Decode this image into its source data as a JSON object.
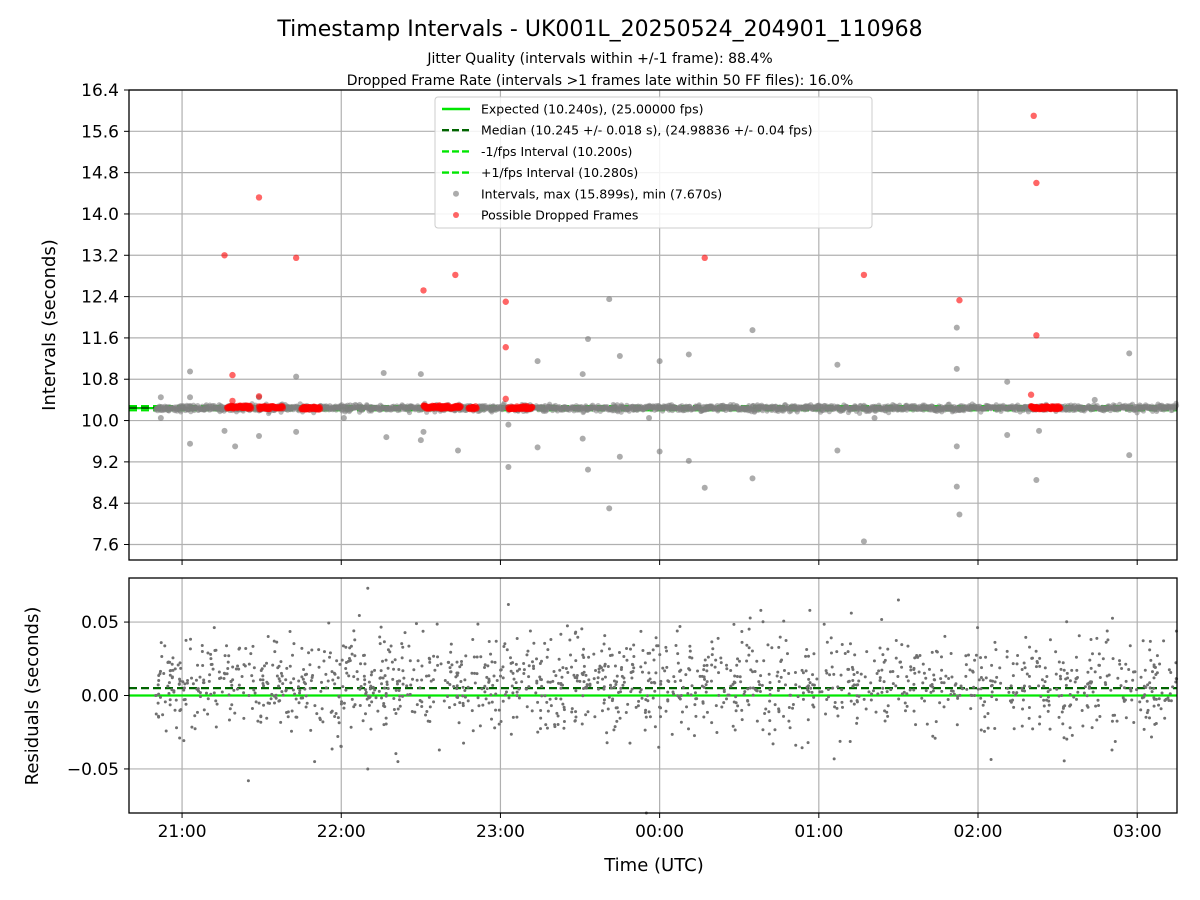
{
  "figure": {
    "title": "Timestamp Intervals - UK001L_20250524_204901_110968",
    "subtitle_1": "Jitter Quality (intervals within +/-1 frame): 88.4%",
    "subtitle_2": "Dropped Frame Rate (intervals >1 frames late within 50 FF files): 16.0%"
  },
  "chart_data": [
    {
      "type": "scatter",
      "panel": "top",
      "xlabel": "",
      "ylabel": "Intervals (seconds)",
      "x_axis_kind": "time (UTC)",
      "xlim": [
        "20:40",
        "03:15"
      ],
      "ylim": [
        7.3,
        16.4
      ],
      "y_ticks": [
        "7.6",
        "8.4",
        "9.2",
        "10.0",
        "10.8",
        "11.6",
        "12.4",
        "13.2",
        "14.0",
        "14.8",
        "15.6",
        "16.4"
      ],
      "x_ticks": [
        "21:00",
        "22:00",
        "23:00",
        "00:00",
        "01:00",
        "02:00",
        "03:00"
      ],
      "grid": true,
      "legend_position": "top-center",
      "legend": [
        {
          "label": "Expected (10.240s), (25.00000 fps)",
          "style": "solid",
          "color": "#00e600"
        },
        {
          "label": "Median (10.245 +/- 0.018 s), (24.98836 +/- 0.04 fps)",
          "style": "dashed",
          "color": "#006400"
        },
        {
          "label": "-1/fps Interval (10.200s)",
          "style": "dashed",
          "color": "#00e600"
        },
        {
          "label": "+1/fps Interval (10.280s)",
          "style": "dashed",
          "color": "#00e600"
        },
        {
          "label": "Intervals, max (15.899s), min (7.670s)",
          "style": "marker",
          "color": "#808080"
        },
        {
          "label": "Possible Dropped Frames",
          "style": "marker",
          "color": "#ff0000"
        }
      ],
      "reference_lines": {
        "expected": 10.24,
        "median": 10.245,
        "minus_one_frame": 10.2,
        "plus_one_frame": 10.28
      },
      "dense_band": {
        "from": "20:50",
        "to": "03:15",
        "center": 10.24,
        "spread": 0.05,
        "approx_count": 2100
      },
      "dropped_clusters": [
        {
          "from": "21:17",
          "to": "21:26",
          "y": 10.26
        },
        {
          "from": "21:29",
          "to": "21:38",
          "y": 10.25
        },
        {
          "from": "21:45",
          "to": "21:52",
          "y": 10.24
        },
        {
          "from": "22:31",
          "to": "22:45",
          "y": 10.26
        },
        {
          "from": "22:48",
          "to": "22:51",
          "y": 10.25
        },
        {
          "from": "23:03",
          "to": "23:12",
          "y": 10.25
        },
        {
          "from": "02:20",
          "to": "02:31",
          "y": 10.25
        }
      ],
      "outliers": [
        {
          "x": "20:52",
          "y": 10.45
        },
        {
          "x": "20:52",
          "y": 10.05
        },
        {
          "x": "21:03",
          "y": 10.95
        },
        {
          "x": "21:03",
          "y": 10.45
        },
        {
          "x": "21:03",
          "y": 9.55
        },
        {
          "x": "21:16",
          "y": 9.8
        },
        {
          "x": "21:20",
          "y": 9.5
        },
        {
          "x": "21:29",
          "y": 9.7
        },
        {
          "x": "21:29",
          "y": 10.45
        },
        {
          "x": "21:43",
          "y": 10.85
        },
        {
          "x": "21:43",
          "y": 9.78
        },
        {
          "x": "22:16",
          "y": 10.92
        },
        {
          "x": "22:17",
          "y": 9.68
        },
        {
          "x": "22:30",
          "y": 10.9
        },
        {
          "x": "22:30",
          "y": 9.62
        },
        {
          "x": "22:31",
          "y": 9.78
        },
        {
          "x": "22:44",
          "y": 9.42
        },
        {
          "x": "23:03",
          "y": 9.92
        },
        {
          "x": "23:03",
          "y": 9.1
        },
        {
          "x": "23:14",
          "y": 11.15
        },
        {
          "x": "23:14",
          "y": 9.48
        },
        {
          "x": "23:31",
          "y": 10.9
        },
        {
          "x": "23:31",
          "y": 9.65
        },
        {
          "x": "23:33",
          "y": 11.58
        },
        {
          "x": "23:33",
          "y": 9.05
        },
        {
          "x": "23:41",
          "y": 12.35
        },
        {
          "x": "23:41",
          "y": 8.3
        },
        {
          "x": "23:45",
          "y": 11.25
        },
        {
          "x": "23:45",
          "y": 9.3
        },
        {
          "x": "24:00",
          "y": 11.15
        },
        {
          "x": "24:00",
          "y": 9.4
        },
        {
          "x": "24:11",
          "y": 11.28
        },
        {
          "x": "24:11",
          "y": 9.22
        },
        {
          "x": "24:17",
          "y": 8.7
        },
        {
          "x": "24:35",
          "y": 11.75
        },
        {
          "x": "24:35",
          "y": 8.88
        },
        {
          "x": "25:07",
          "y": 11.08
        },
        {
          "x": "25:07",
          "y": 9.42
        },
        {
          "x": "25:17",
          "y": 7.66
        },
        {
          "x": "25:52",
          "y": 11.8
        },
        {
          "x": "25:52",
          "y": 11.0
        },
        {
          "x": "25:52",
          "y": 9.5
        },
        {
          "x": "25:52",
          "y": 8.72
        },
        {
          "x": "25:53",
          "y": 8.18
        },
        {
          "x": "26:11",
          "y": 10.75
        },
        {
          "x": "26:11",
          "y": 9.72
        },
        {
          "x": "26:23",
          "y": 9.8
        },
        {
          "x": "26:22",
          "y": 8.85
        },
        {
          "x": "26:57",
          "y": 11.3
        },
        {
          "x": "26:57",
          "y": 9.33
        },
        {
          "x": "26:44",
          "y": 10.4
        },
        {
          "x": "22:01",
          "y": 10.05
        },
        {
          "x": "23:56",
          "y": 10.05
        },
        {
          "x": "25:21",
          "y": 10.05
        }
      ],
      "dropped_outliers": [
        {
          "x": "21:16",
          "y": 13.2
        },
        {
          "x": "21:19",
          "y": 10.88
        },
        {
          "x": "21:19",
          "y": 10.38
        },
        {
          "x": "21:29",
          "y": 14.32
        },
        {
          "x": "21:29",
          "y": 10.47
        },
        {
          "x": "21:43",
          "y": 13.15
        },
        {
          "x": "22:31",
          "y": 12.52
        },
        {
          "x": "22:43",
          "y": 12.82
        },
        {
          "x": "23:02",
          "y": 12.3
        },
        {
          "x": "23:02",
          "y": 11.42
        },
        {
          "x": "23:02",
          "y": 10.42
        },
        {
          "x": "24:17",
          "y": 13.15
        },
        {
          "x": "25:17",
          "y": 12.82
        },
        {
          "x": "25:53",
          "y": 12.33
        },
        {
          "x": "26:21",
          "y": 15.9
        },
        {
          "x": "26:22",
          "y": 14.6
        },
        {
          "x": "26:22",
          "y": 11.65
        },
        {
          "x": "26:20",
          "y": 10.5
        }
      ]
    },
    {
      "type": "scatter",
      "panel": "bottom",
      "xlabel": "Time (UTC)",
      "ylabel": "Residuals (seconds)",
      "xlim": [
        "20:40",
        "03:15"
      ],
      "ylim": [
        -0.08,
        0.08
      ],
      "y_ticks": [
        "−0.05",
        "0.00",
        "0.05"
      ],
      "x_ticks": [
        "21:00",
        "22:00",
        "23:00",
        "00:00",
        "01:00",
        "02:00",
        "03:00"
      ],
      "grid": true,
      "reference_lines": {
        "expected": 0.0,
        "median": 0.005
      },
      "residual_cloud": {
        "from": "20:50",
        "to": "03:15",
        "mean": 0.008,
        "spread": 0.017,
        "approx_count": 1500
      },
      "residual_extremes": [
        {
          "x": "22:10",
          "y": 0.073
        },
        {
          "x": "23:03",
          "y": 0.062
        },
        {
          "x": "25:30",
          "y": 0.065
        },
        {
          "x": "21:25",
          "y": -0.058
        },
        {
          "x": "22:10",
          "y": -0.05
        },
        {
          "x": "23:55",
          "y": -0.08
        }
      ]
    }
  ]
}
